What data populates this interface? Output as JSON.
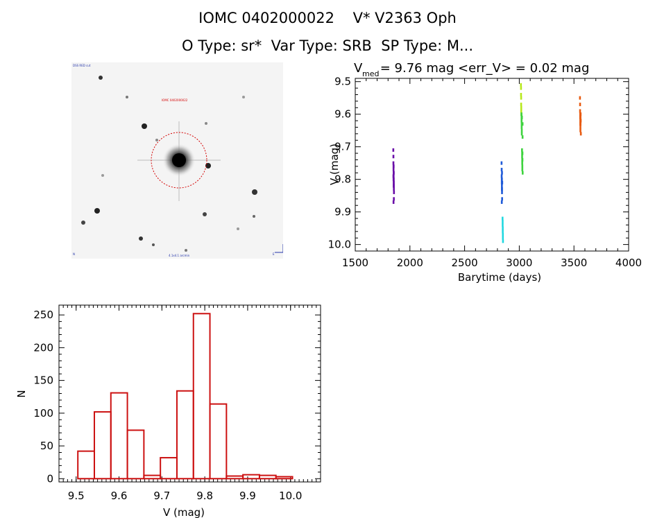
{
  "header": {
    "line1": "IOMC 0402000022    V* V2363 Oph",
    "line2": "O Type: sr*  Var Type: SRB  SP Type: M..."
  },
  "finder": {
    "label_top_left": "DSS RED cut",
    "label_center": "IOMC 0402000022",
    "label_bottom_left": "N",
    "label_bottom_center": "4.1x4.1 arcmin",
    "label_bottom_right": "E"
  },
  "colors": {
    "histogram": "#cc1111",
    "aperture": "#d40000",
    "axis": "#000000"
  },
  "chart_data": [
    {
      "type": "scatter",
      "title_prefix": "V",
      "title_sub": "med",
      "title_rest": " = 9.76 mag <err_V> = 0.02 mag",
      "xlabel": "Barytime (days)",
      "ylabel": "V (mag)",
      "xlim": [
        1500,
        4000
      ],
      "ylim": [
        10.02,
        9.49
      ],
      "y_inverted": true,
      "xticks": [
        1500,
        2000,
        2500,
        3000,
        3500,
        4000
      ],
      "yticks": [
        9.5,
        9.6,
        9.7,
        9.8,
        9.9,
        10.0
      ],
      "ytick_labels": [
        "9.5",
        "9.6",
        "9.7",
        "9.8",
        "9.9",
        "10.0"
      ],
      "series": [
        {
          "color": "#6a0fa8",
          "x": [
            1848,
            1849,
            1849,
            1850,
            1850,
            1851,
            1851,
            1852,
            1852,
            1853,
            1853,
            1854,
            1849,
            1850,
            1851,
            1852,
            1853,
            1850,
            1851,
            1852
          ],
          "y": [
            9.71,
            9.73,
            9.75,
            9.76,
            9.77,
            9.78,
            9.79,
            9.8,
            9.81,
            9.82,
            9.83,
            9.84,
            9.79,
            9.8,
            9.82,
            9.78,
            9.86,
            9.87,
            9.76,
            9.81
          ]
        },
        {
          "color": "#1f5ad8",
          "x": [
            2838,
            2839,
            2839,
            2840,
            2840,
            2841,
            2841,
            2842,
            2842,
            2843,
            2844,
            2840,
            2841,
            2842
          ],
          "y": [
            9.75,
            9.77,
            9.79,
            9.8,
            9.81,
            9.82,
            9.83,
            9.84,
            9.78,
            9.86,
            9.81,
            9.87,
            9.8,
            9.83
          ]
        },
        {
          "color": "#22d8e0",
          "x": [
            2847,
            2848,
            2848,
            2849,
            2849,
            2850,
            2850,
            2851
          ],
          "y": [
            9.92,
            9.93,
            9.94,
            9.95,
            9.96,
            9.97,
            9.98,
            9.99
          ]
        },
        {
          "color": "#b6e81c",
          "x": [
            3015,
            3016,
            3016,
            3017,
            3017,
            3018,
            3018,
            3019
          ],
          "y": [
            9.51,
            9.52,
            9.54,
            9.55,
            9.57,
            9.58,
            9.59,
            9.6
          ]
        },
        {
          "color": "#3ed33e",
          "x": [
            3020,
            3021,
            3021,
            3022,
            3022,
            3023,
            3023,
            3024,
            3025,
            3026,
            3026,
            3027,
            3027,
            3028,
            3028,
            3029,
            3029,
            3030,
            3030,
            3031
          ],
          "y": [
            9.6,
            9.61,
            9.62,
            9.63,
            9.64,
            9.65,
            9.66,
            9.61,
            9.71,
            9.72,
            9.73,
            9.74,
            9.75,
            9.76,
            9.77,
            9.72,
            9.74,
            9.63,
            9.67,
            9.78
          ]
        },
        {
          "color": "#e85a10",
          "x": [
            3555,
            3556,
            3556,
            3557,
            3557,
            3558,
            3558,
            3559,
            3559,
            3560,
            3560,
            3561,
            3562,
            3563
          ],
          "y": [
            9.55,
            9.57,
            9.59,
            9.6,
            9.61,
            9.62,
            9.63,
            9.64,
            9.65,
            9.63,
            9.61,
            9.6,
            9.62,
            9.66
          ]
        }
      ]
    },
    {
      "type": "bar",
      "histogram": true,
      "xlabel": "V (mag)",
      "ylabel": "N",
      "xlim": [
        9.46,
        10.07
      ],
      "ylim": [
        -5,
        265
      ],
      "xticks": [
        9.5,
        9.6,
        9.7,
        9.8,
        9.9,
        10.0
      ],
      "xtick_labels": [
        "9.5",
        "9.6",
        "9.7",
        "9.8",
        "9.9",
        "10.0"
      ],
      "yticks": [
        0,
        50,
        100,
        150,
        200,
        250
      ],
      "bin_width": 0.0385,
      "bins_start": [
        9.504,
        9.5425,
        9.581,
        9.6195,
        9.658,
        9.6965,
        9.735,
        9.7735,
        9.812,
        9.8505,
        9.889,
        9.9275,
        9.966
      ],
      "values": [
        42,
        102,
        131,
        74,
        5,
        32,
        134,
        252,
        114,
        4,
        6,
        5,
        3
      ]
    }
  ]
}
